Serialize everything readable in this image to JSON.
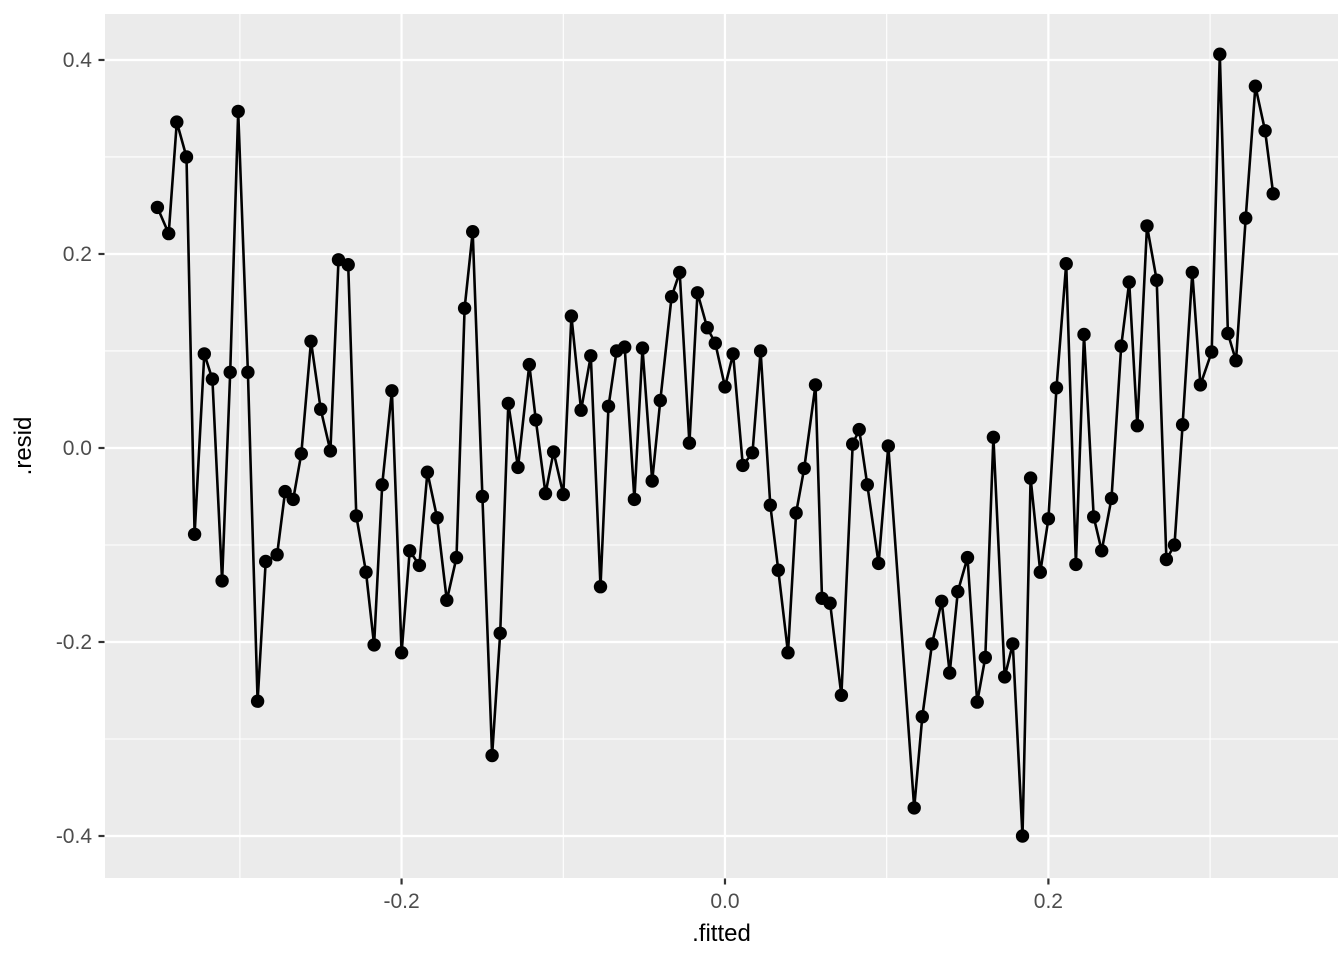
{
  "figure": {
    "kind": "ggplot2-scatter-line-residual-plot",
    "background": "#FFFFFF"
  },
  "chart_data": {
    "type": "line",
    "title": "",
    "xlabel": ".fitted",
    "ylabel": ".resid",
    "legend": "none",
    "grid": "major+minor",
    "xlim": [
      -0.3834,
      0.3791
    ],
    "ylim": [
      -0.4433,
      0.4474
    ],
    "x_ticks": {
      "values": [
        -0.2,
        0.0,
        0.2
      ],
      "labels": [
        "-0.2",
        "0.0",
        "0.2"
      ]
    },
    "y_ticks": {
      "values": [
        0.4,
        0.2,
        0.0,
        -0.2,
        -0.4
      ],
      "labels": [
        "0.4",
        "0.2",
        "0.0",
        "-0.2",
        "-0.4"
      ]
    },
    "x_minor": [
      -0.3,
      -0.1,
      0.1,
      0.3
    ],
    "y_minor": [
      0.3,
      0.1,
      -0.1,
      -0.3
    ],
    "colors": {
      "panel_bg": "#EBEBEB",
      "grid": "#FFFFFF",
      "series": "#000000",
      "tick_label": "#4D4D4D",
      "tick_mark": "#333333",
      "axis_title": "#000000",
      "figure_bg": "#FFFFFF"
    },
    "points": [
      [
        -0.351,
        0.248
      ],
      [
        -0.344,
        0.221
      ],
      [
        -0.339,
        0.336
      ],
      [
        -0.333,
        0.3
      ],
      [
        -0.328,
        -0.089
      ],
      [
        -0.322,
        0.097
      ],
      [
        -0.317,
        0.071
      ],
      [
        -0.311,
        -0.137
      ],
      [
        -0.306,
        0.078
      ],
      [
        -0.301,
        0.347
      ],
      [
        -0.295,
        0.078
      ],
      [
        -0.289,
        -0.261
      ],
      [
        -0.284,
        -0.117
      ],
      [
        -0.277,
        -0.11
      ],
      [
        -0.272,
        -0.045
      ],
      [
        -0.267,
        -0.053
      ],
      [
        -0.262,
        -0.006
      ],
      [
        -0.256,
        0.11
      ],
      [
        -0.25,
        0.04
      ],
      [
        -0.244,
        -0.003
      ],
      [
        -0.239,
        0.194
      ],
      [
        -0.233,
        0.189
      ],
      [
        -0.228,
        -0.07
      ],
      [
        -0.222,
        -0.128
      ],
      [
        -0.217,
        -0.203
      ],
      [
        -0.212,
        -0.038
      ],
      [
        -0.206,
        0.059
      ],
      [
        -0.2,
        -0.211
      ],
      [
        -0.195,
        -0.106
      ],
      [
        -0.189,
        -0.121
      ],
      [
        -0.184,
        -0.025
      ],
      [
        -0.178,
        -0.072
      ],
      [
        -0.172,
        -0.157
      ],
      [
        -0.166,
        -0.113
      ],
      [
        -0.161,
        0.144
      ],
      [
        -0.156,
        0.223
      ],
      [
        -0.15,
        -0.05
      ],
      [
        -0.144,
        -0.317
      ],
      [
        -0.139,
        -0.191
      ],
      [
        -0.134,
        0.046
      ],
      [
        -0.128,
        -0.02
      ],
      [
        -0.121,
        0.086
      ],
      [
        -0.117,
        0.029
      ],
      [
        -0.111,
        -0.047
      ],
      [
        -0.106,
        -0.004
      ],
      [
        -0.1,
        -0.048
      ],
      [
        -0.095,
        0.136
      ],
      [
        -0.089,
        0.039
      ],
      [
        -0.083,
        0.095
      ],
      [
        -0.077,
        -0.143
      ],
      [
        -0.072,
        0.043
      ],
      [
        -0.067,
        0.1
      ],
      [
        -0.062,
        0.104
      ],
      [
        -0.056,
        -0.053
      ],
      [
        -0.051,
        0.103
      ],
      [
        -0.045,
        -0.034
      ],
      [
        -0.04,
        0.049
      ],
      [
        -0.033,
        0.156
      ],
      [
        -0.028,
        0.181
      ],
      [
        -0.022,
        0.005
      ],
      [
        -0.017,
        0.16
      ],
      [
        -0.011,
        0.124
      ],
      [
        -0.006,
        0.108
      ],
      [
        0.0,
        0.063
      ],
      [
        0.005,
        0.097
      ],
      [
        0.011,
        -0.018
      ],
      [
        0.017,
        -0.005
      ],
      [
        0.022,
        0.1
      ],
      [
        0.028,
        -0.059
      ],
      [
        0.033,
        -0.126
      ],
      [
        0.039,
        -0.211
      ],
      [
        0.044,
        -0.067
      ],
      [
        0.049,
        -0.021
      ],
      [
        0.056,
        0.065
      ],
      [
        0.06,
        -0.155
      ],
      [
        0.065,
        -0.16
      ],
      [
        0.072,
        -0.255
      ],
      [
        0.079,
        0.004
      ],
      [
        0.083,
        0.019
      ],
      [
        0.088,
        -0.038
      ],
      [
        0.095,
        -0.119
      ],
      [
        0.101,
        0.002
      ],
      [
        0.117,
        -0.371
      ],
      [
        0.122,
        -0.277
      ],
      [
        0.128,
        -0.202
      ],
      [
        0.134,
        -0.158
      ],
      [
        0.139,
        -0.232
      ],
      [
        0.144,
        -0.148
      ],
      [
        0.15,
        -0.113
      ],
      [
        0.156,
        -0.262
      ],
      [
        0.161,
        -0.216
      ],
      [
        0.166,
        0.011
      ],
      [
        0.173,
        -0.236
      ],
      [
        0.178,
        -0.202
      ],
      [
        0.184,
        -0.4
      ],
      [
        0.189,
        -0.031
      ],
      [
        0.195,
        -0.128
      ],
      [
        0.2,
        -0.073
      ],
      [
        0.205,
        0.062
      ],
      [
        0.211,
        0.19
      ],
      [
        0.217,
        -0.12
      ],
      [
        0.222,
        0.117
      ],
      [
        0.228,
        -0.071
      ],
      [
        0.233,
        -0.106
      ],
      [
        0.239,
        -0.052
      ],
      [
        0.245,
        0.105
      ],
      [
        0.25,
        0.171
      ],
      [
        0.255,
        0.023
      ],
      [
        0.261,
        0.229
      ],
      [
        0.267,
        0.173
      ],
      [
        0.273,
        -0.115
      ],
      [
        0.278,
        -0.1
      ],
      [
        0.283,
        0.024
      ],
      [
        0.289,
        0.181
      ],
      [
        0.294,
        0.065
      ],
      [
        0.301,
        0.099
      ],
      [
        0.306,
        0.406
      ],
      [
        0.311,
        0.118
      ],
      [
        0.316,
        0.09
      ],
      [
        0.322,
        0.237
      ],
      [
        0.328,
        0.373
      ],
      [
        0.334,
        0.327
      ],
      [
        0.339,
        0.262
      ]
    ],
    "style": {
      "point_radius": 6.7,
      "line_width": 2.6,
      "major_grid_width": 2.2,
      "minor_grid_width": 1.1,
      "tick_length": 6,
      "tick_label_size": 21,
      "axis_title_size": 24
    }
  }
}
